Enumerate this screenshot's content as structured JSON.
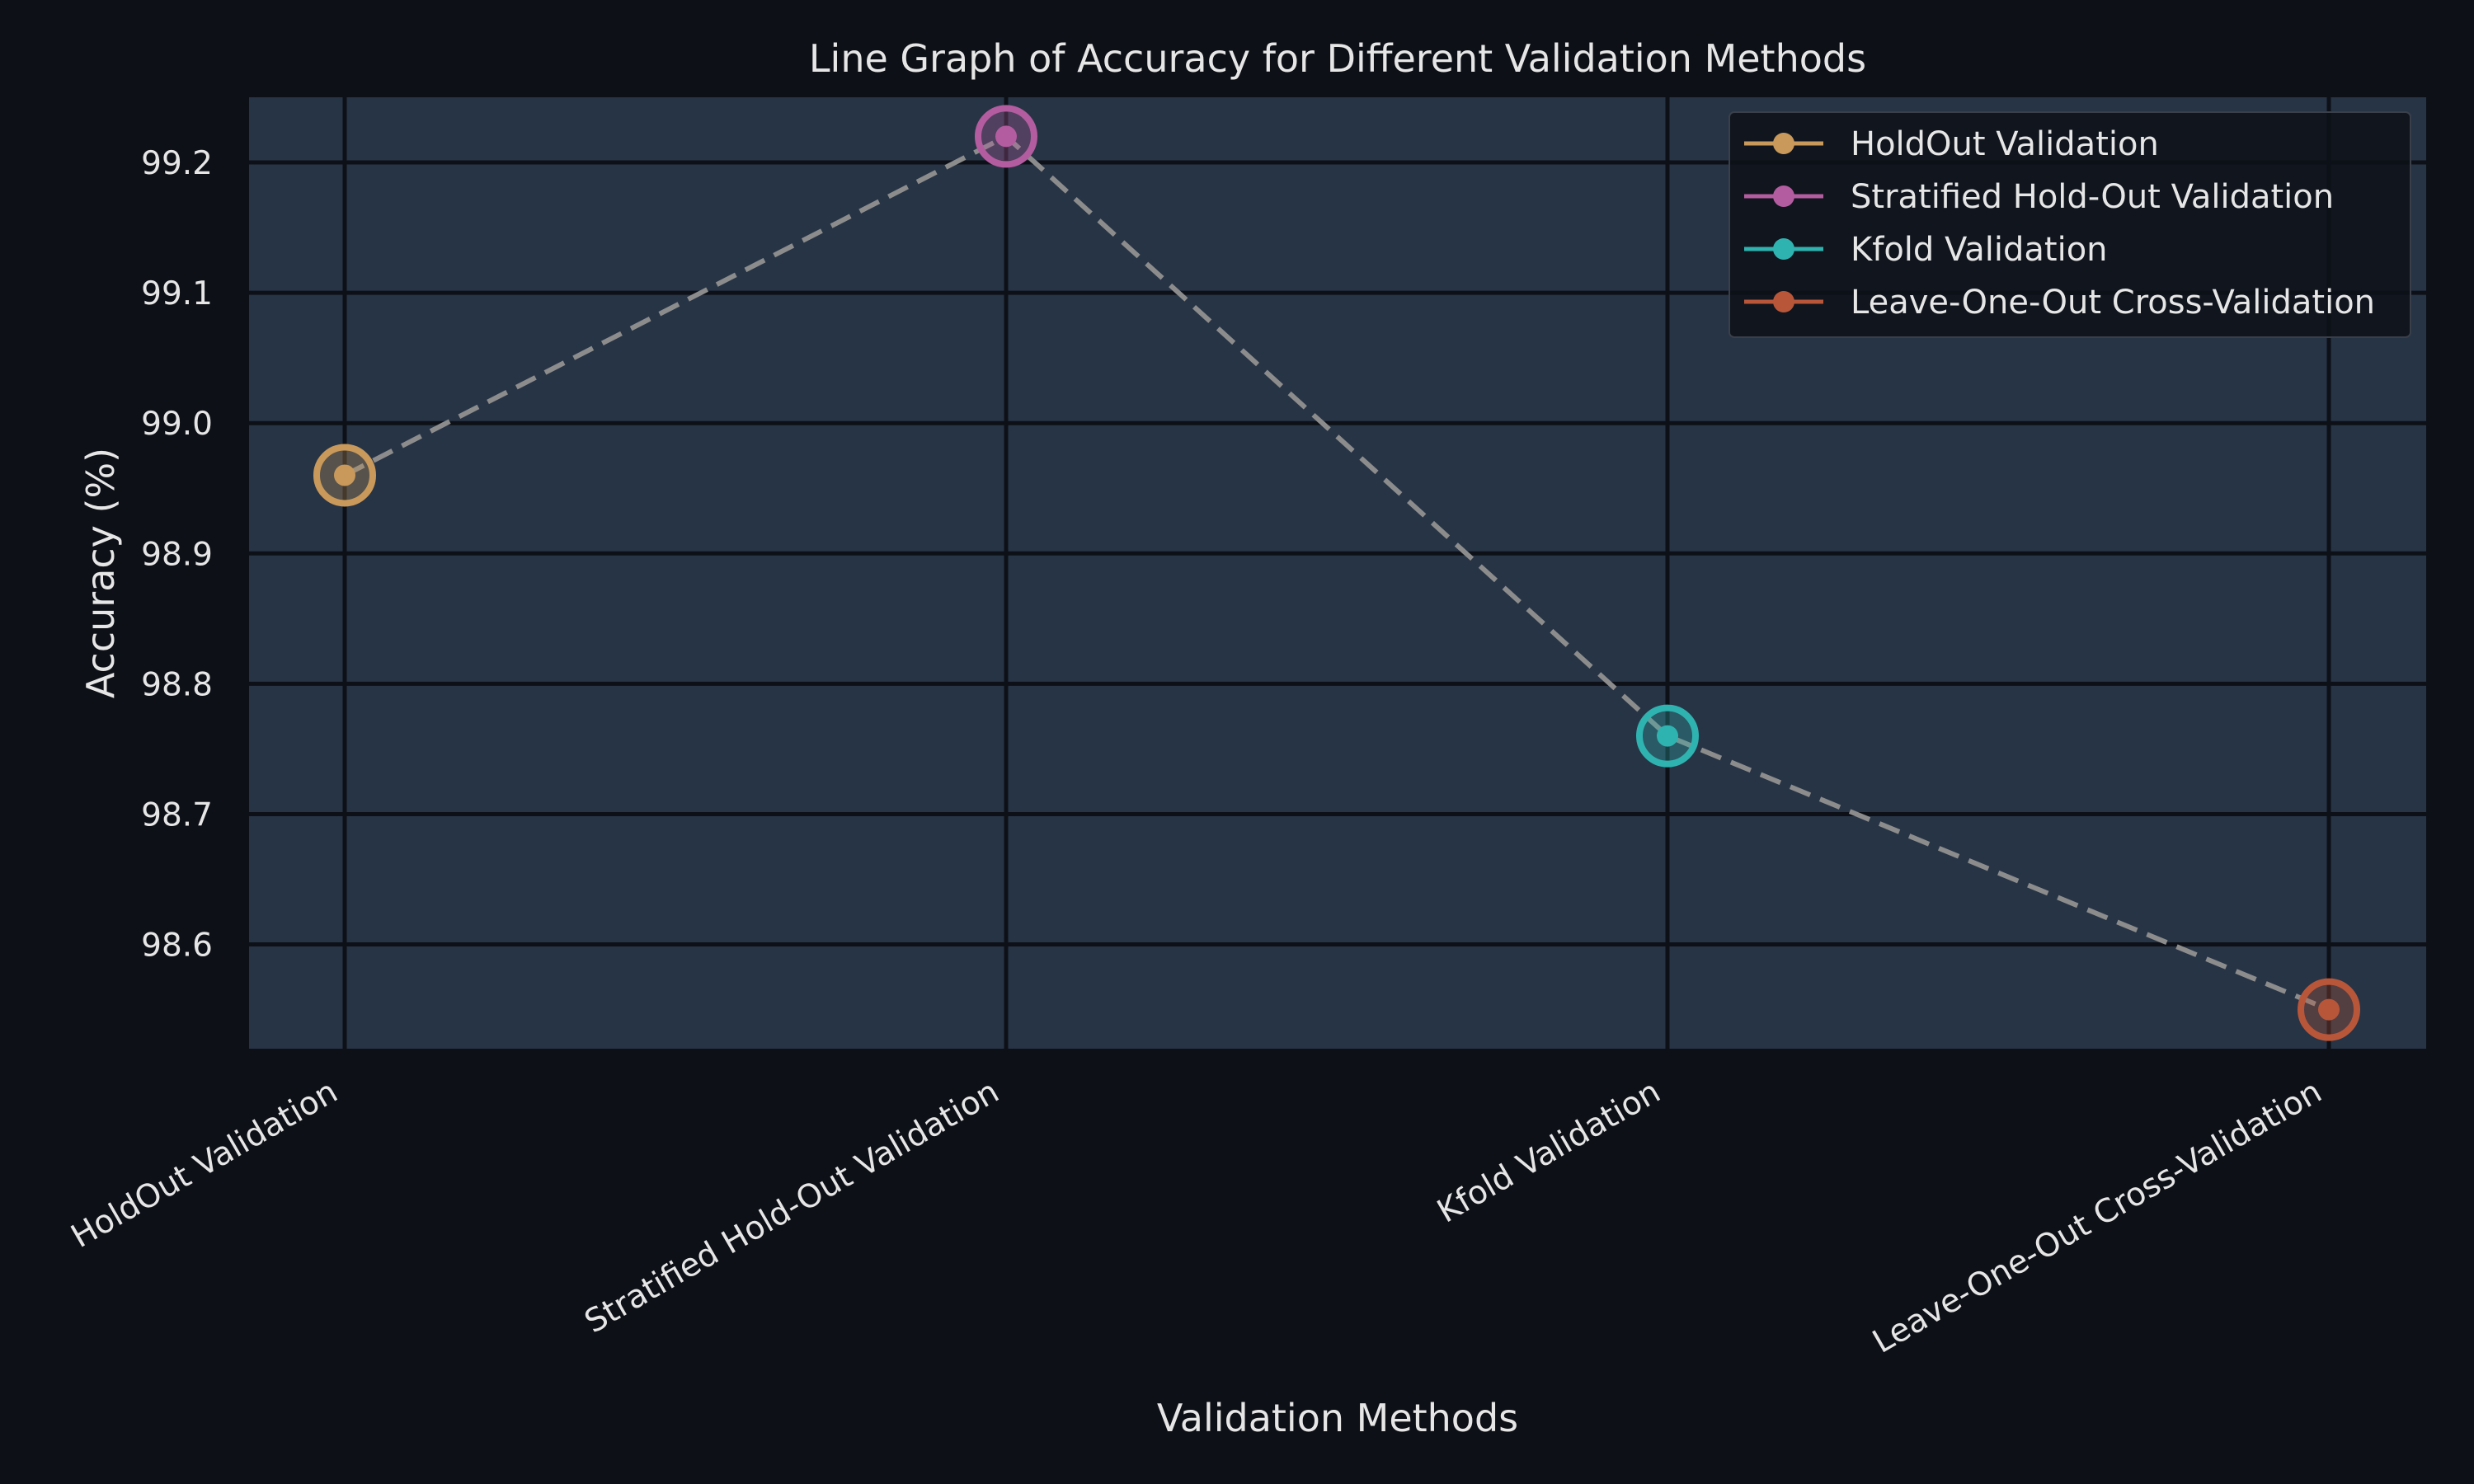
{
  "chart_data": {
    "type": "line",
    "title": "Line Graph of Accuracy for Different Validation Methods",
    "xlabel": "Validation Methods",
    "ylabel": "Accuracy (%)",
    "categories": [
      "HoldOut Validation",
      "Stratified Hold-Out Validation",
      "Kfold Validation",
      "Leave-One-Out Cross-Validation"
    ],
    "values": [
      98.96,
      99.22,
      98.76,
      98.55
    ],
    "ylim": [
      98.52,
      99.25
    ],
    "yticks": [
      98.6,
      98.7,
      98.8,
      98.9,
      99.0,
      99.1,
      99.2
    ],
    "yticks_text": [
      "98.6",
      "98.7",
      "98.8",
      "98.9",
      "99.0",
      "99.1",
      "99.2"
    ],
    "grid": true,
    "legend_position": "top-right",
    "series": [
      {
        "name": "HoldOut Validation",
        "color": "#c8995a",
        "x": "HoldOut Validation",
        "value": 98.96
      },
      {
        "name": "Stratified Hold-Out Validation",
        "color": "#b35c9f",
        "x": "Stratified Hold-Out Validation",
        "value": 99.22
      },
      {
        "name": "Kfold Validation",
        "color": "#2fb3b0",
        "x": "Kfold Validation",
        "value": 98.76
      },
      {
        "name": "Leave-One-Out Cross-Validation",
        "color": "#b8563a",
        "x": "Leave-One-Out Cross-Validation",
        "value": 98.55
      }
    ],
    "connector_color": "#8c8c8c"
  },
  "colors": {
    "background": "#0d1017",
    "plot_background": "#273445",
    "grid": "#0d1017",
    "text": "#e6e6e6",
    "legend_background": "#0d1017"
  }
}
